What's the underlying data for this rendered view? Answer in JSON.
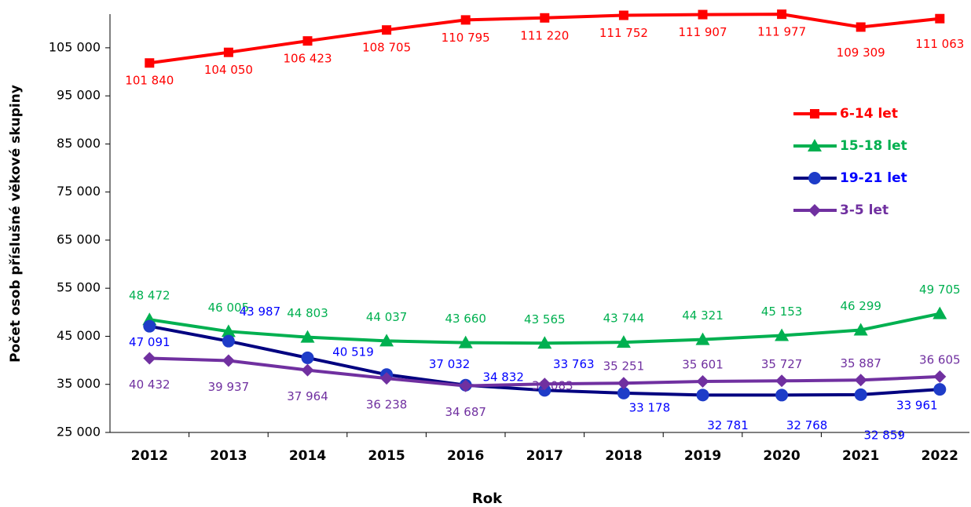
{
  "chart_data": {
    "type": "line",
    "x_label": "Rok",
    "y_label": "Počet osob příslušné věkové skupiny",
    "categories": [
      "2012",
      "2013",
      "2014",
      "2015",
      "2016",
      "2017",
      "2018",
      "2019",
      "2020",
      "2021",
      "2022"
    ],
    "ylim": [
      25000,
      112000
    ],
    "yticks": [
      {
        "value": 25000,
        "label": "25 000"
      },
      {
        "value": 35000,
        "label": "35 000"
      },
      {
        "value": 45000,
        "label": "45 000"
      },
      {
        "value": 55000,
        "label": "55 000"
      },
      {
        "value": 65000,
        "label": "65 000"
      },
      {
        "value": 75000,
        "label": "75 000"
      },
      {
        "value": 85000,
        "label": "85 000"
      },
      {
        "value": 95000,
        "label": "95 000"
      },
      {
        "value": 105000,
        "label": "105 000"
      }
    ],
    "legend": "upper right",
    "series": [
      {
        "name": "6-14 let",
        "color": "#ff0000",
        "text_color": "#ff0000",
        "marker": "square",
        "values": [
          101840,
          104050,
          106423,
          108705,
          110795,
          111220,
          111752,
          111907,
          111977,
          109309,
          111063
        ],
        "value_labels": [
          "101 840",
          "104 050",
          "106 423",
          "108 705",
          "110 795",
          "111 220",
          "111 752",
          "111 907",
          "111 977",
          "109 309",
          "111 063"
        ]
      },
      {
        "name": "15-18 let",
        "color": "#00b050",
        "text_color": "#00b050",
        "marker": "triangle",
        "values": [
          48472,
          46005,
          44803,
          44037,
          43660,
          43565,
          43744,
          44321,
          45153,
          46299,
          49705
        ],
        "value_labels": [
          "48 472",
          "46 005",
          "44 803",
          "44 037",
          "43 660",
          "43 565",
          "43 744",
          "44 321",
          "45 153",
          "46 299",
          "49 705"
        ]
      },
      {
        "name": "19-21 let",
        "color": "#000080",
        "text_color": "#0000ff",
        "marker": "circle",
        "values": [
          47091,
          43987,
          40519,
          37032,
          34832,
          33763,
          33178,
          32781,
          32768,
          32859,
          33961
        ],
        "value_labels": [
          "47 091",
          "43 987",
          "40 519",
          "37 032",
          "34 832",
          "33 763",
          "33 178",
          "32 781",
          "32 768",
          "32 859",
          "33 961"
        ]
      },
      {
        "name": "3-5 let",
        "color": "#7030a0",
        "text_color": "#7030a0",
        "marker": "diamond",
        "values": [
          40432,
          39937,
          37964,
          36238,
          34687,
          35083,
          35251,
          35601,
          35727,
          35887,
          36605
        ],
        "value_labels": [
          "40 432",
          "39 937",
          "37 964",
          "36 238",
          "34 687",
          "35 083",
          "35 251",
          "35 601",
          "35 727",
          "35 887",
          "36 605"
        ]
      }
    ]
  }
}
